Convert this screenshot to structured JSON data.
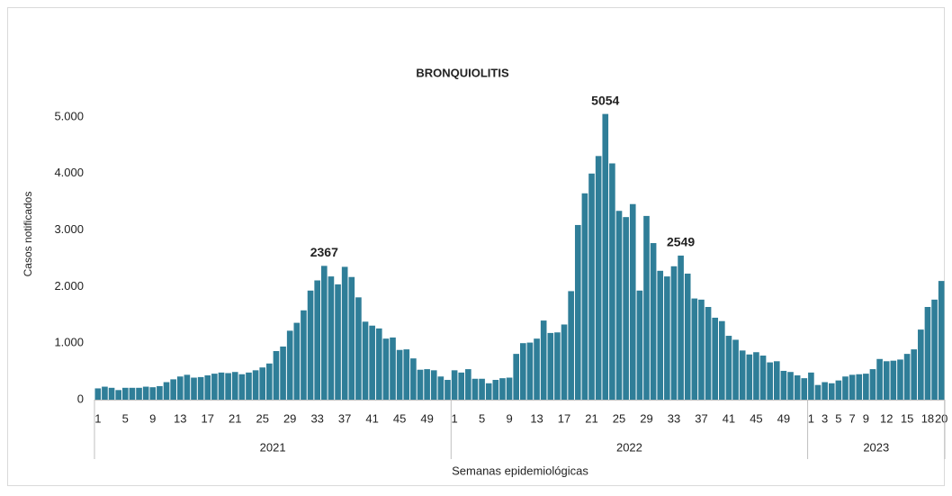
{
  "chart_data": {
    "type": "bar",
    "title": "BRONQUIOLITIS",
    "y_label": "Casos notificados",
    "x_label": "Semanas epidemiológicas",
    "color": "#2f7e98",
    "categories": [
      "1",
      null,
      null,
      null,
      "5",
      null,
      null,
      null,
      "9",
      null,
      null,
      null,
      "13",
      null,
      null,
      null,
      "17",
      null,
      null,
      null,
      "21",
      null,
      null,
      null,
      "25",
      null,
      null,
      null,
      "29",
      null,
      null,
      null,
      "33",
      null,
      null,
      null,
      "37",
      null,
      null,
      null,
      "41",
      null,
      null,
      null,
      "45",
      null,
      null,
      null,
      "49",
      null,
      null,
      null,
      "1",
      null,
      null,
      null,
      "5",
      null,
      null,
      null,
      "9",
      null,
      null,
      null,
      "13",
      null,
      null,
      null,
      "17",
      null,
      null,
      null,
      "21",
      null,
      null,
      null,
      "25",
      null,
      null,
      null,
      "29",
      null,
      null,
      null,
      "33",
      null,
      null,
      null,
      "37",
      null,
      null,
      null,
      "41",
      null,
      null,
      null,
      "45",
      null,
      null,
      null,
      "49",
      null,
      null,
      null,
      "1",
      null,
      "3",
      null,
      "5",
      null,
      "7",
      null,
      "9",
      null,
      null,
      "12",
      null,
      null,
      "15",
      null,
      null,
      "18",
      null,
      "20"
    ],
    "groups": [
      {
        "label": "2021",
        "size": 52
      },
      {
        "label": "2022",
        "size": 52
      },
      {
        "label": "2023",
        "size": 20
      }
    ],
    "values": [
      200,
      230,
      210,
      170,
      210,
      210,
      210,
      230,
      220,
      240,
      310,
      360,
      410,
      440,
      390,
      400,
      430,
      460,
      480,
      470,
      490,
      450,
      480,
      520,
      570,
      640,
      860,
      940,
      1220,
      1360,
      1580,
      1930,
      2110,
      2367,
      2180,
      2040,
      2350,
      2170,
      1810,
      1380,
      1310,
      1260,
      1080,
      1100,
      880,
      890,
      730,
      530,
      540,
      520,
      410,
      350,
      520,
      480,
      540,
      370,
      370,
      290,
      350,
      380,
      390,
      810,
      1000,
      1010,
      1080,
      1400,
      1180,
      1190,
      1330,
      1920,
      3090,
      3650,
      4000,
      4310,
      5054,
      4180,
      3340,
      3230,
      3460,
      1930,
      3250,
      2770,
      2280,
      2180,
      2360,
      2549,
      2230,
      1790,
      1770,
      1640,
      1450,
      1390,
      1130,
      1060,
      870,
      800,
      840,
      780,
      660,
      680,
      510,
      490,
      430,
      380,
      480,
      260,
      310,
      290,
      340,
      410,
      440,
      450,
      460,
      540,
      720,
      680,
      690,
      710,
      810,
      890,
      1240,
      1640,
      1770,
      2100
    ],
    "value_labels": [
      null,
      null,
      null,
      null,
      null,
      null,
      null,
      null,
      null,
      null,
      null,
      null,
      null,
      null,
      null,
      null,
      null,
      null,
      null,
      null,
      null,
      null,
      null,
      null,
      null,
      null,
      null,
      null,
      null,
      null,
      null,
      null,
      null,
      "2367",
      null,
      null,
      null,
      null,
      null,
      null,
      null,
      null,
      null,
      null,
      null,
      null,
      null,
      null,
      null,
      null,
      null,
      null,
      null,
      null,
      null,
      null,
      null,
      null,
      null,
      null,
      null,
      null,
      null,
      null,
      null,
      null,
      null,
      null,
      null,
      null,
      null,
      null,
      null,
      null,
      "5054",
      null,
      null,
      null,
      null,
      null,
      null,
      null,
      null,
      null,
      null,
      "2549",
      null,
      null,
      null,
      null,
      null,
      null,
      null,
      null,
      null,
      null,
      null,
      null,
      null,
      null,
      null,
      null,
      null,
      null,
      null,
      null,
      null,
      null,
      null,
      null,
      null,
      null,
      null,
      null,
      null,
      null,
      null,
      null,
      null,
      null,
      null,
      null,
      null,
      null
    ],
    "ylim": [
      0,
      5000
    ],
    "yticks": [
      0,
      {
        "value": 1000,
        "label": "1.000"
      },
      {
        "value": 2000,
        "label": "2.000"
      },
      {
        "value": 3000,
        "label": "3.000"
      },
      {
        "value": 4000,
        "label": "4.000"
      },
      {
        "value": 5000,
        "label": "5.000"
      }
    ],
    "grid": false
  }
}
